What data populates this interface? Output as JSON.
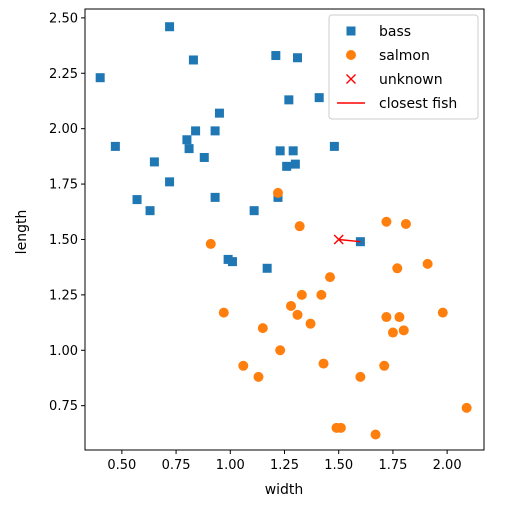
{
  "chart_data": {
    "type": "scatter",
    "xlabel": "width",
    "ylabel": "length",
    "xlim": [
      0.33,
      2.17
    ],
    "ylim": [
      0.55,
      2.54
    ],
    "xticks": [
      0.5,
      0.75,
      1.0,
      1.25,
      1.5,
      1.75,
      2.0
    ],
    "xtick_labels": [
      "0.50",
      "0.75",
      "1.00",
      "1.25",
      "1.50",
      "1.75",
      "2.00"
    ],
    "yticks": [
      0.75,
      1.0,
      1.25,
      1.5,
      1.75,
      2.0,
      2.25,
      2.5
    ],
    "ytick_labels": [
      "0.75",
      "1.00",
      "1.25",
      "1.50",
      "1.75",
      "2.00",
      "2.25",
      "2.50"
    ],
    "legend_position": "top-right",
    "series": [
      {
        "name": "bass",
        "marker": "square",
        "color": "#1f77b4",
        "points": [
          [
            0.72,
            2.46
          ],
          [
            0.4,
            2.23
          ],
          [
            0.83,
            2.31
          ],
          [
            1.21,
            2.33
          ],
          [
            1.31,
            2.32
          ],
          [
            1.27,
            2.13
          ],
          [
            1.41,
            2.14
          ],
          [
            0.47,
            1.92
          ],
          [
            0.84,
            1.99
          ],
          [
            0.95,
            2.07
          ],
          [
            0.93,
            1.99
          ],
          [
            0.8,
            1.95
          ],
          [
            0.81,
            1.91
          ],
          [
            0.88,
            1.87
          ],
          [
            0.65,
            1.85
          ],
          [
            1.23,
            1.9
          ],
          [
            1.29,
            1.9
          ],
          [
            1.26,
            1.83
          ],
          [
            1.3,
            1.84
          ],
          [
            1.48,
            1.92
          ],
          [
            0.72,
            1.76
          ],
          [
            0.57,
            1.68
          ],
          [
            0.63,
            1.63
          ],
          [
            0.93,
            1.69
          ],
          [
            1.11,
            1.63
          ],
          [
            1.22,
            1.69
          ],
          [
            0.99,
            1.41
          ],
          [
            1.01,
            1.4
          ],
          [
            1.17,
            1.37
          ],
          [
            1.6,
            1.49
          ]
        ]
      },
      {
        "name": "salmon",
        "marker": "circle",
        "color": "#ff7f0e",
        "points": [
          [
            1.22,
            1.71
          ],
          [
            1.72,
            1.58
          ],
          [
            1.81,
            1.57
          ],
          [
            1.32,
            1.56
          ],
          [
            0.91,
            1.48
          ],
          [
            1.77,
            1.37
          ],
          [
            1.91,
            1.39
          ],
          [
            1.46,
            1.33
          ],
          [
            1.33,
            1.25
          ],
          [
            1.42,
            1.25
          ],
          [
            1.28,
            1.2
          ],
          [
            1.31,
            1.16
          ],
          [
            1.37,
            1.12
          ],
          [
            0.97,
            1.17
          ],
          [
            1.98,
            1.17
          ],
          [
            1.72,
            1.15
          ],
          [
            1.78,
            1.15
          ],
          [
            1.15,
            1.1
          ],
          [
            1.75,
            1.08
          ],
          [
            1.8,
            1.09
          ],
          [
            1.23,
            1.0
          ],
          [
            1.06,
            0.93
          ],
          [
            1.43,
            0.94
          ],
          [
            1.71,
            0.93
          ],
          [
            1.13,
            0.88
          ],
          [
            1.6,
            0.88
          ],
          [
            1.49,
            0.65
          ],
          [
            1.51,
            0.65
          ],
          [
            1.67,
            0.62
          ],
          [
            2.09,
            0.74
          ]
        ]
      },
      {
        "name": "unknown",
        "marker": "x",
        "color": "#ff0000",
        "points": [
          [
            1.5,
            1.5
          ]
        ]
      }
    ],
    "lines": [
      {
        "name": "closest fish",
        "color": "#ff0000",
        "points": [
          [
            1.5,
            1.5
          ],
          [
            1.6,
            1.49
          ]
        ]
      }
    ]
  }
}
